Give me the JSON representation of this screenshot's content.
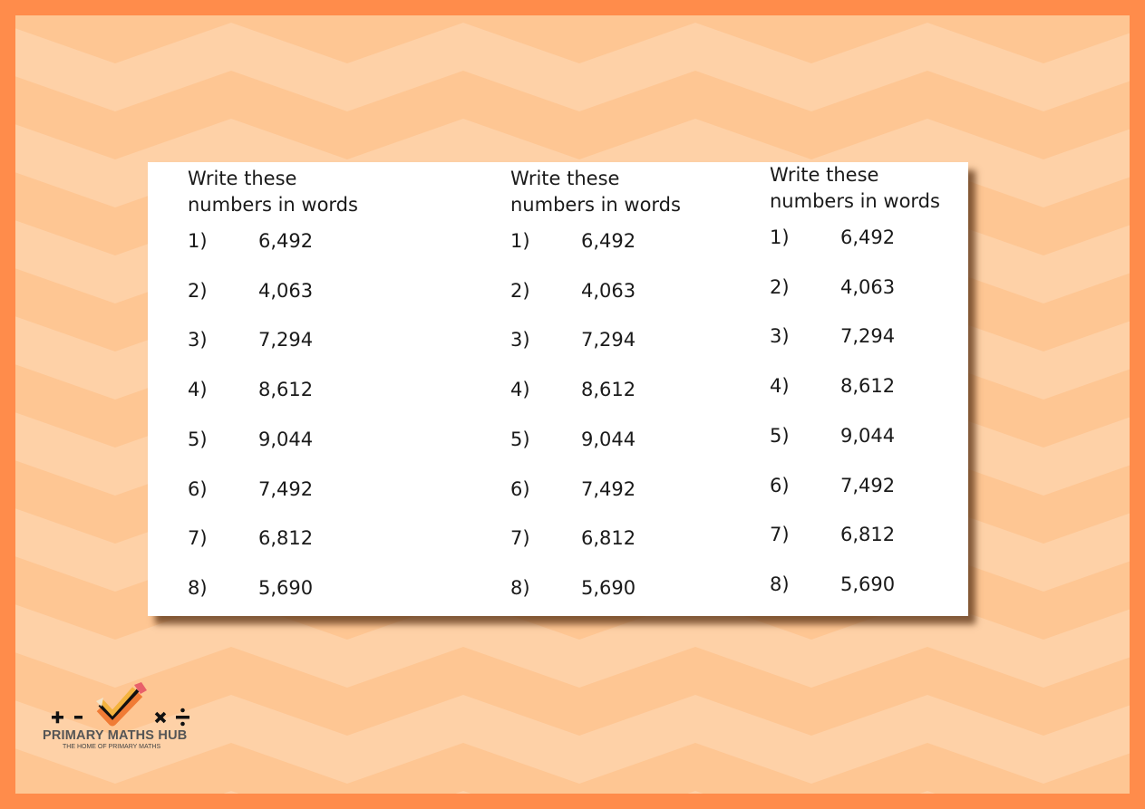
{
  "colors": {
    "border": "#FF8C4B",
    "chevron_light": "#FED1A7",
    "chevron_dark": "#FEC693",
    "card": "#FFFFFF"
  },
  "worksheet": {
    "columns": [
      {
        "heading_line1": "Write these",
        "heading_line2": "numbers in words",
        "items": [
          {
            "label": "1)",
            "value": "6,492"
          },
          {
            "label": "2)",
            "value": "4,063"
          },
          {
            "label": "3)",
            "value": "7,294"
          },
          {
            "label": "4)",
            "value": "8,612"
          },
          {
            "label": "5)",
            "value": "9,044"
          },
          {
            "label": "6)",
            "value": "7,492"
          },
          {
            "label": "7)",
            "value": "6,812"
          },
          {
            "label": "8)",
            "value": "5,690"
          }
        ]
      },
      {
        "heading_line1": "Write these",
        "heading_line2": "numbers in words",
        "items": [
          {
            "label": "1)",
            "value": "6,492"
          },
          {
            "label": "2)",
            "value": "4,063"
          },
          {
            "label": "3)",
            "value": "7,294"
          },
          {
            "label": "4)",
            "value": "8,612"
          },
          {
            "label": "5)",
            "value": "9,044"
          },
          {
            "label": "6)",
            "value": "7,492"
          },
          {
            "label": "7)",
            "value": "6,812"
          },
          {
            "label": "8)",
            "value": "5,690"
          }
        ]
      },
      {
        "heading_line1": "Write these",
        "heading_line2": "numbers in words",
        "items": [
          {
            "label": "1)",
            "value": "6,492"
          },
          {
            "label": "2)",
            "value": "4,063"
          },
          {
            "label": "3)",
            "value": "7,294"
          },
          {
            "label": "4)",
            "value": "8,612"
          },
          {
            "label": "5)",
            "value": "9,044"
          },
          {
            "label": "6)",
            "value": "7,492"
          },
          {
            "label": "7)",
            "value": "6,812"
          },
          {
            "label": "8)",
            "value": "5,690"
          }
        ]
      }
    ]
  },
  "logo": {
    "brand": "PRIMARY MATHS HUB",
    "tagline": "THE HOME OF PRIMARY MATHS",
    "symbols": [
      "+",
      "-",
      "×",
      "÷"
    ]
  }
}
